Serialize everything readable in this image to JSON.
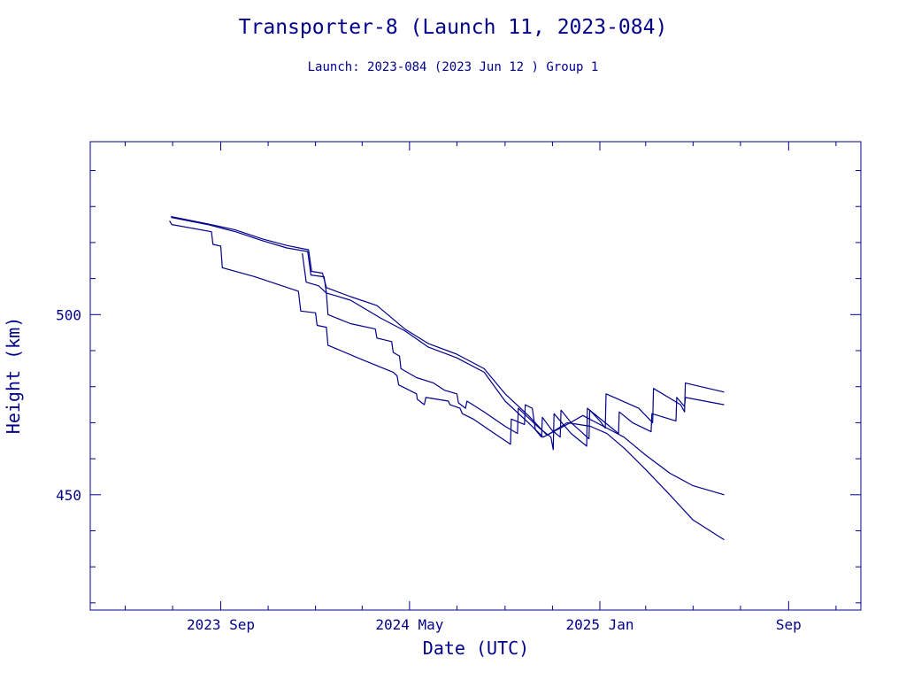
{
  "colors": {
    "ink": "#00008b",
    "background": "#ffffff"
  },
  "chart_data": {
    "type": "line",
    "title": "Transporter-8 (Launch 11, 2023-084)",
    "subtitle": "Launch: 2023-084  (2023 Jun 12 )  Group 1",
    "xlabel": "Date (UTC)",
    "ylabel": "Height (km)",
    "xlim": [
      "2023-03-17",
      "2025-12-03"
    ],
    "ylim": [
      418,
      548
    ],
    "x_ticks": [
      {
        "date": "2023-09-01",
        "label": "2023 Sep"
      },
      {
        "date": "2024-05-01",
        "label": "2024 May"
      },
      {
        "date": "2025-01-01",
        "label": "2025 Jan"
      },
      {
        "date": "2025-09-01",
        "label": "Sep"
      }
    ],
    "x_minor_ticks": [
      "2023-05-01",
      "2023-07-01",
      "2023-11-01",
      "2024-01-01",
      "2024-03-01",
      "2024-07-01",
      "2024-09-01",
      "2024-11-01",
      "2025-03-01",
      "2025-05-01",
      "2025-07-01",
      "2025-11-01"
    ],
    "y_ticks": [
      {
        "value": 450,
        "label": "450"
      },
      {
        "value": 500,
        "label": "500"
      }
    ],
    "y_minor_ticks": [
      420,
      430,
      440,
      460,
      470,
      480,
      490,
      510,
      520,
      530,
      540
    ],
    "grid": false,
    "legend": "none",
    "series": [
      {
        "points": [
          [
            "2023-06-29",
            527.2
          ],
          [
            "2023-08-15",
            525.2
          ],
          [
            "2023-09-20",
            523.5
          ],
          [
            "2023-10-25",
            521.0
          ],
          [
            "2023-11-25",
            519.2
          ],
          [
            "2023-12-23",
            518.0
          ],
          [
            "2023-12-27",
            512.0
          ],
          [
            "2024-01-10",
            511.5
          ],
          [
            "2024-01-15",
            507.5
          ],
          [
            "2024-02-15",
            505.0
          ],
          [
            "2024-03-20",
            502.5
          ],
          [
            "2024-04-25",
            496.0
          ],
          [
            "2024-05-25",
            492.0
          ],
          [
            "2024-07-01",
            489.0
          ],
          [
            "2024-08-05",
            485.0
          ],
          [
            "2024-09-01",
            478.0
          ],
          [
            "2024-10-01",
            472.0
          ],
          [
            "2024-10-25",
            466.5
          ],
          [
            "2024-11-20",
            470.0
          ],
          [
            "2024-12-20",
            469.0
          ],
          [
            "2025-01-10",
            467.0
          ],
          [
            "2025-02-01",
            463.0
          ],
          [
            "2025-03-01",
            457.0
          ],
          [
            "2025-04-01",
            450.0
          ],
          [
            "2025-05-01",
            443.0
          ],
          [
            "2025-06-10",
            437.5
          ]
        ]
      },
      {
        "points": [
          [
            "2023-06-29",
            527.0
          ],
          [
            "2023-08-15",
            525.0
          ],
          [
            "2023-09-20",
            523.0
          ],
          [
            "2023-10-25",
            520.5
          ],
          [
            "2023-11-25",
            518.5
          ],
          [
            "2023-12-22",
            517.5
          ],
          [
            "2023-12-26",
            511.0
          ],
          [
            "2024-01-12",
            510.5
          ],
          [
            "2024-01-15",
            506.0
          ],
          [
            "2024-02-15",
            504.0
          ],
          [
            "2024-03-25",
            499.0
          ],
          [
            "2024-04-25",
            495.5
          ],
          [
            "2024-05-25",
            491.0
          ],
          [
            "2024-07-01",
            488.0
          ],
          [
            "2024-08-05",
            484.0
          ],
          [
            "2024-09-01",
            476.0
          ],
          [
            "2024-10-01",
            470.0
          ],
          [
            "2024-10-20",
            466.0
          ],
          [
            "2024-11-20",
            469.5
          ],
          [
            "2024-12-10",
            472.0
          ],
          [
            "2025-01-10",
            468.5
          ],
          [
            "2025-02-01",
            466.0
          ],
          [
            "2025-03-01",
            461.0
          ],
          [
            "2025-04-01",
            456.0
          ],
          [
            "2025-05-01",
            452.5
          ],
          [
            "2025-06-10",
            450.0
          ]
        ]
      },
      {
        "points": [
          [
            "2023-06-27",
            526.0
          ],
          [
            "2023-06-30",
            525.0
          ],
          [
            "2023-08-20",
            523.0
          ],
          [
            "2023-08-22",
            519.5
          ],
          [
            "2023-09-01",
            519.0
          ],
          [
            "2023-09-03",
            513.0
          ],
          [
            "2023-10-15",
            510.5
          ],
          [
            "2023-12-10",
            506.5
          ],
          [
            "2023-12-13",
            501.0
          ],
          [
            "2024-01-01",
            500.5
          ],
          [
            "2024-01-03",
            497.0
          ],
          [
            "2024-01-15",
            496.5
          ],
          [
            "2024-01-17",
            491.5
          ],
          [
            "2024-03-01",
            487.5
          ],
          [
            "2024-04-10",
            484.0
          ],
          [
            "2024-04-15",
            483.0
          ],
          [
            "2024-04-17",
            480.5
          ],
          [
            "2024-05-10",
            478.0
          ],
          [
            "2024-05-11",
            476.5
          ],
          [
            "2024-05-20",
            475.0
          ],
          [
            "2024-05-22",
            477.0
          ],
          [
            "2024-06-20",
            476.0
          ],
          [
            "2024-06-22",
            475.0
          ],
          [
            "2024-07-05",
            474.0
          ],
          [
            "2024-07-08",
            472.5
          ],
          [
            "2024-07-22",
            471.0
          ],
          [
            "2024-08-15",
            467.5
          ],
          [
            "2024-09-08",
            464.0
          ],
          [
            "2024-09-09",
            471.0
          ],
          [
            "2024-09-26",
            469.5
          ],
          [
            "2024-09-27",
            475.0
          ],
          [
            "2024-10-06",
            474.0
          ],
          [
            "2024-10-10",
            468.0
          ],
          [
            "2024-10-18",
            466.0
          ],
          [
            "2024-10-19",
            471.5
          ],
          [
            "2024-10-31",
            468.0
          ],
          [
            "2024-11-11",
            466.0
          ],
          [
            "2024-11-12",
            473.5
          ],
          [
            "2024-11-25",
            470.0
          ],
          [
            "2024-12-08",
            467.5
          ],
          [
            "2024-12-18",
            465.5
          ],
          [
            "2024-12-19",
            473.5
          ],
          [
            "2025-01-01",
            470.5
          ],
          [
            "2025-01-08",
            468.5
          ],
          [
            "2025-01-09",
            478.0
          ],
          [
            "2025-02-20",
            474.0
          ],
          [
            "2025-03-01",
            472.0
          ],
          [
            "2025-03-10",
            470.0
          ],
          [
            "2025-03-11",
            479.5
          ],
          [
            "2025-04-15",
            475.0
          ],
          [
            "2025-04-20",
            473.0
          ],
          [
            "2025-04-21",
            481.0
          ],
          [
            "2025-06-10",
            478.5
          ]
        ]
      },
      {
        "points": [
          [
            "2023-12-15",
            517.0
          ],
          [
            "2023-12-20",
            509.0
          ],
          [
            "2024-01-05",
            508.0
          ],
          [
            "2024-01-15",
            506.0
          ],
          [
            "2024-01-17",
            500.0
          ],
          [
            "2024-02-15",
            497.5
          ],
          [
            "2024-03-18",
            496.0
          ],
          [
            "2024-03-20",
            493.5
          ],
          [
            "2024-04-08",
            492.5
          ],
          [
            "2024-04-10",
            489.5
          ],
          [
            "2024-04-18",
            488.5
          ],
          [
            "2024-04-20",
            485.0
          ],
          [
            "2024-05-10",
            482.5
          ],
          [
            "2024-06-01",
            481.0
          ],
          [
            "2024-06-15",
            479.0
          ],
          [
            "2024-07-01",
            478.0
          ],
          [
            "2024-07-03",
            475.5
          ],
          [
            "2024-07-12",
            474.0
          ],
          [
            "2024-07-14",
            476.0
          ],
          [
            "2024-08-05",
            473.0
          ],
          [
            "2024-09-01",
            469.0
          ],
          [
            "2024-09-17",
            467.0
          ],
          [
            "2024-09-18",
            474.0
          ],
          [
            "2024-10-15",
            468.5
          ],
          [
            "2024-10-30",
            466.0
          ],
          [
            "2024-11-02",
            462.5
          ],
          [
            "2024-11-03",
            472.5
          ],
          [
            "2024-11-25",
            467.0
          ],
          [
            "2024-12-15",
            463.5
          ],
          [
            "2024-12-16",
            474.0
          ],
          [
            "2025-01-05",
            470.5
          ],
          [
            "2025-01-25",
            467.0
          ],
          [
            "2025-01-26",
            473.0
          ],
          [
            "2025-02-12",
            470.0
          ],
          [
            "2025-03-08",
            467.5
          ],
          [
            "2025-03-09",
            472.5
          ],
          [
            "2025-04-09",
            470.5
          ],
          [
            "2025-04-10",
            477.0
          ],
          [
            "2025-04-20",
            474.5
          ],
          [
            "2025-04-21",
            477.0
          ],
          [
            "2025-06-10",
            475.0
          ]
        ]
      }
    ]
  }
}
